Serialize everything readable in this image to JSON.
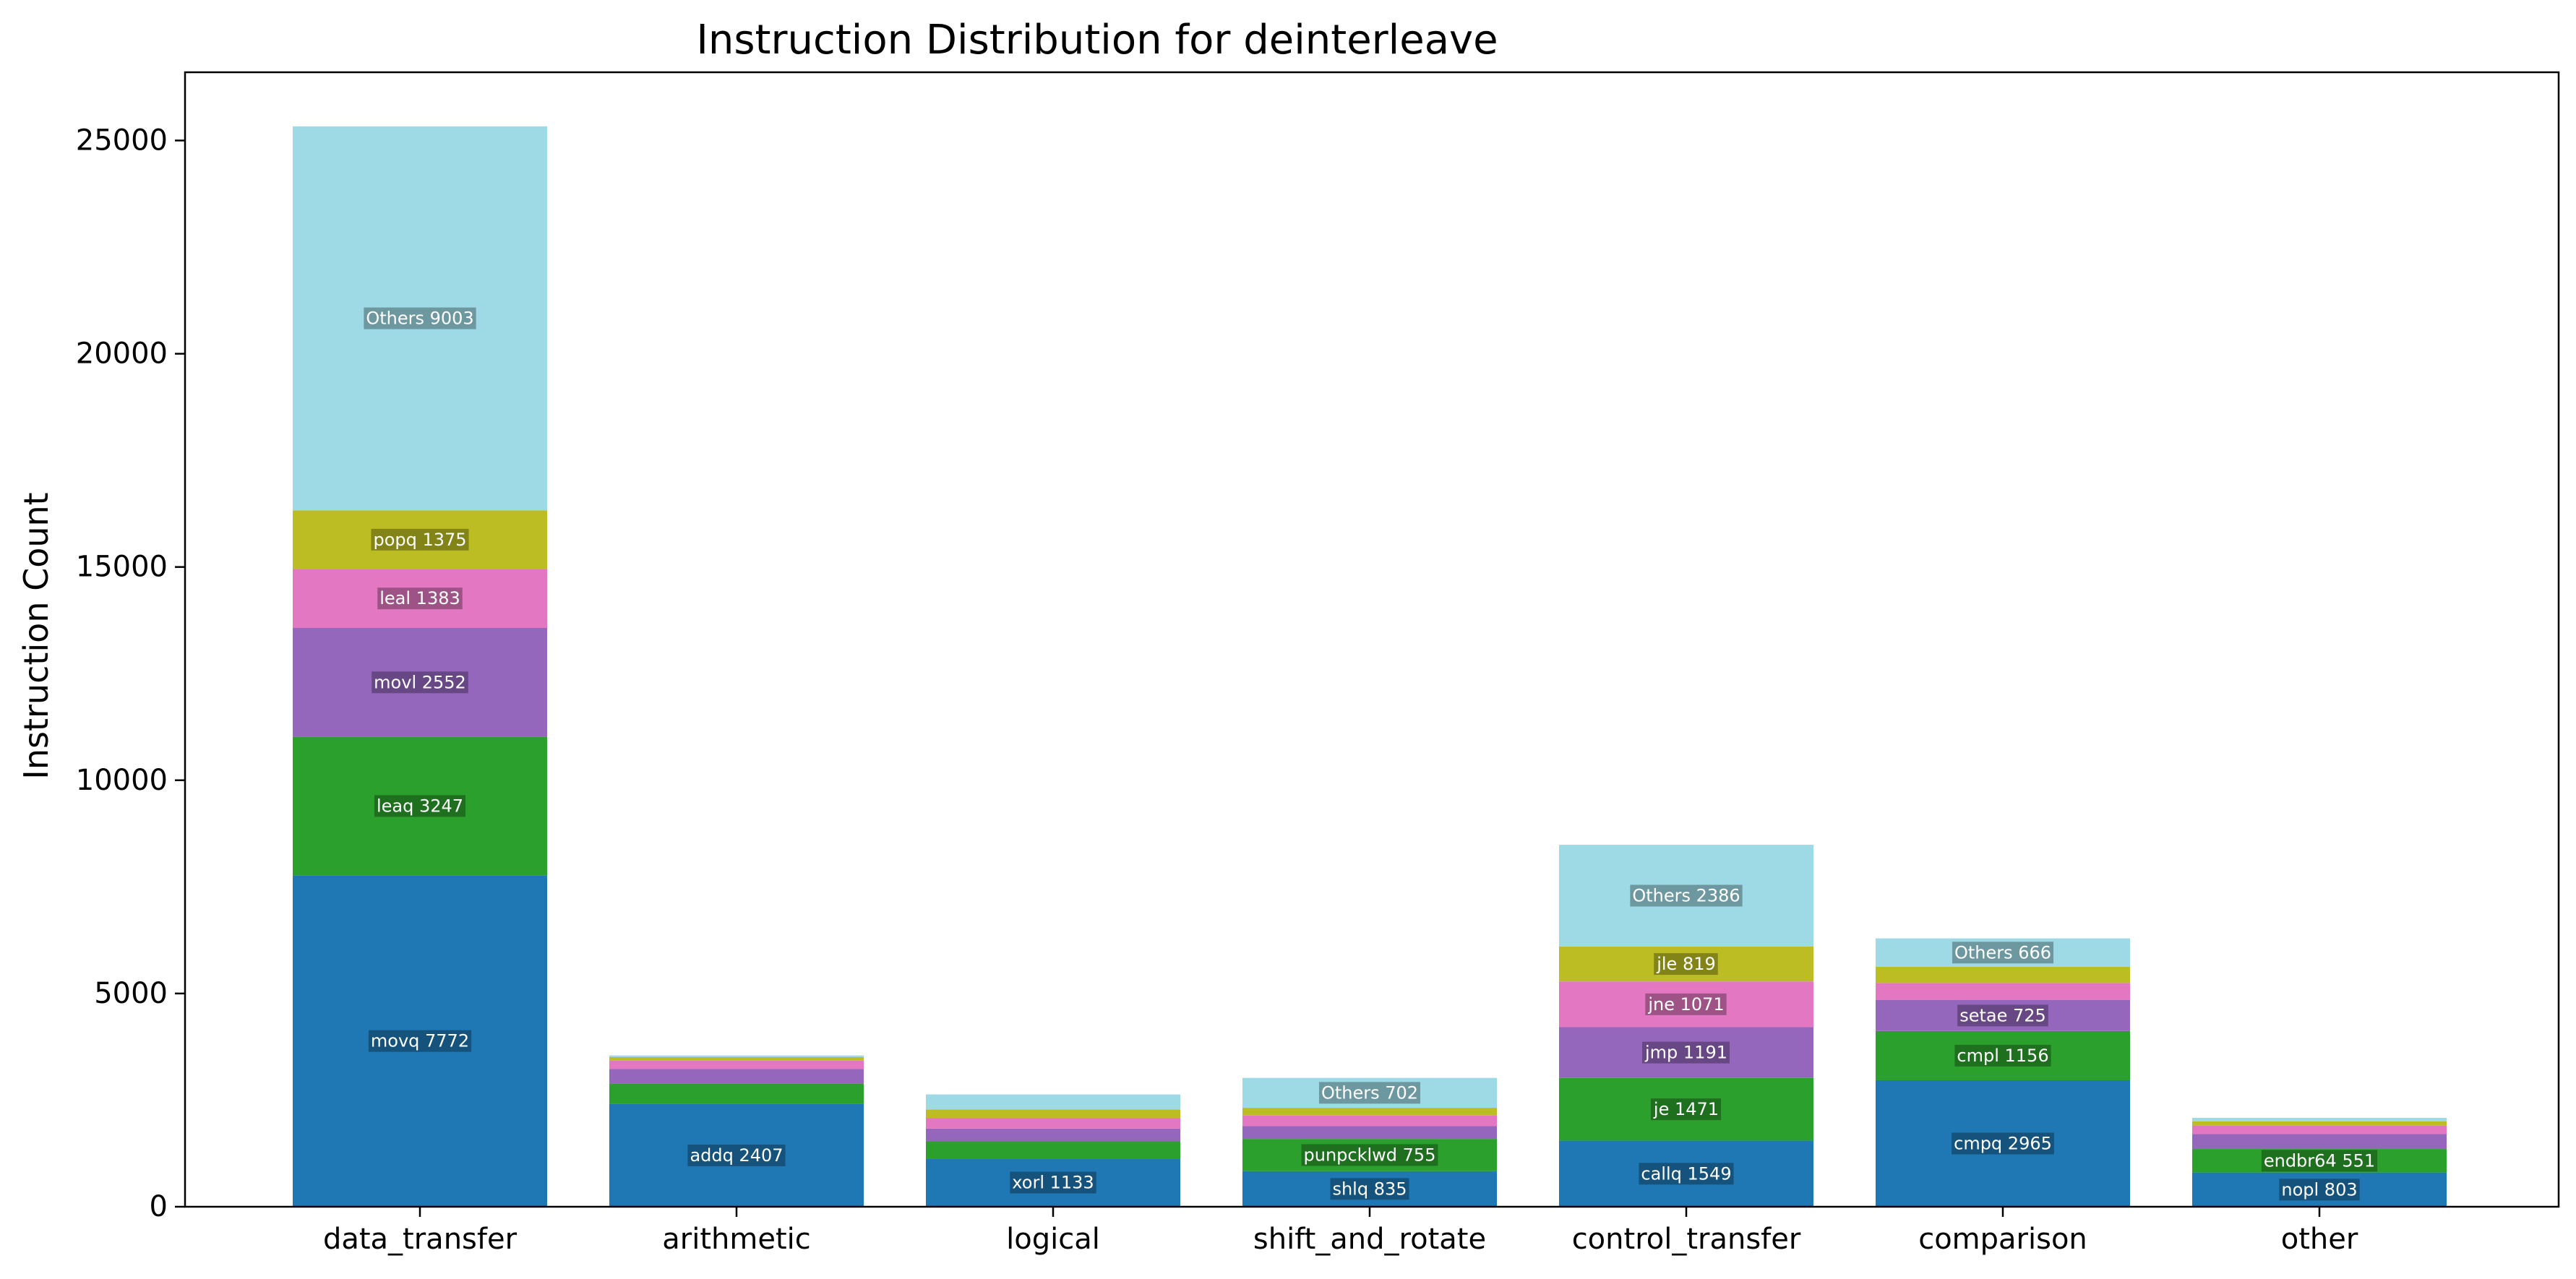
{
  "chart_data": {
    "type": "bar",
    "stacked": true,
    "title": "Instruction Distribution for deinterleave",
    "xlabel": "",
    "ylabel": "Instruction Count",
    "ylim": [
      0,
      26600
    ],
    "yticks": [
      0,
      5000,
      10000,
      15000,
      20000,
      25000
    ],
    "grid": false,
    "categories": [
      "data_transfer",
      "arithmetic",
      "logical",
      "shift_and_rotate",
      "control_transfer",
      "comparison",
      "other"
    ],
    "segment_colors": [
      "#1f77b4",
      "#2ca02c",
      "#9467bd",
      "#e377c2",
      "#bcbd22",
      "#9edae5"
    ],
    "stacks": [
      [
        {
          "label": "movq 7772",
          "value": 7772
        },
        {
          "label": "leaq 3247",
          "value": 3247
        },
        {
          "label": "movl 2552",
          "value": 2552
        },
        {
          "label": "leal 1383",
          "value": 1383
        },
        {
          "label": "popq 1375",
          "value": 1375
        },
        {
          "label": "Others 9003",
          "value": 9003
        }
      ],
      [
        {
          "label": "addq 2407",
          "value": 2407
        },
        {
          "label": "",
          "value": 480
        },
        {
          "label": "",
          "value": 340
        },
        {
          "label": "",
          "value": 200
        },
        {
          "label": "",
          "value": 80
        },
        {
          "label": "",
          "value": 40
        }
      ],
      [
        {
          "label": "xorl 1133",
          "value": 1133
        },
        {
          "label": "",
          "value": 400
        },
        {
          "label": "",
          "value": 300
        },
        {
          "label": "",
          "value": 250
        },
        {
          "label": "",
          "value": 200
        },
        {
          "label": "",
          "value": 350
        }
      ],
      [
        {
          "label": "shlq 835",
          "value": 835
        },
        {
          "label": "punpcklwd 755",
          "value": 755
        },
        {
          "label": "",
          "value": 300
        },
        {
          "label": "",
          "value": 250
        },
        {
          "label": "",
          "value": 180
        },
        {
          "label": "Others 702",
          "value": 702
        }
      ],
      [
        {
          "label": "callq 1549",
          "value": 1549
        },
        {
          "label": "je 1471",
          "value": 1471
        },
        {
          "label": "jmp 1191",
          "value": 1191
        },
        {
          "label": "jne 1071",
          "value": 1071
        },
        {
          "label": "jle 819",
          "value": 819
        },
        {
          "label": "Others 2386",
          "value": 2386
        }
      ],
      [
        {
          "label": "cmpq 2965",
          "value": 2965
        },
        {
          "label": "cmpl 1156",
          "value": 1156
        },
        {
          "label": "setae 725",
          "value": 725
        },
        {
          "label": "",
          "value": 400
        },
        {
          "label": "",
          "value": 380
        },
        {
          "label": "Others 666",
          "value": 666
        }
      ],
      [
        {
          "label": "nopl 803",
          "value": 803
        },
        {
          "label": "endbr64 551",
          "value": 551
        },
        {
          "label": "",
          "value": 350
        },
        {
          "label": "",
          "value": 200
        },
        {
          "label": "",
          "value": 100
        },
        {
          "label": "",
          "value": 80
        }
      ]
    ]
  }
}
